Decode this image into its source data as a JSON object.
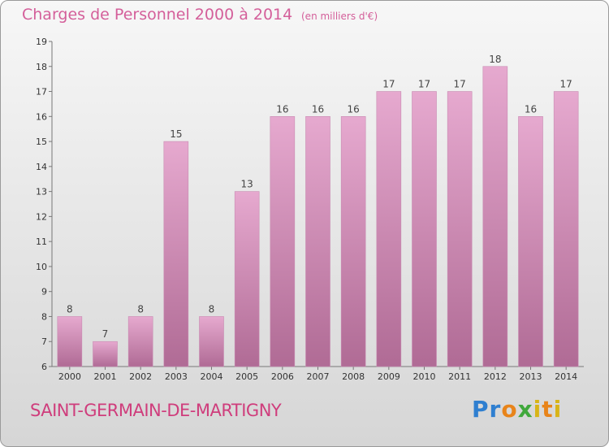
{
  "header": {
    "title": "Charges de Personnel 2000 à 2014",
    "subtitle": "(en milliers d'€)"
  },
  "footer": {
    "commune": "SAINT-GERMAIN-DE-MARTIGNY",
    "logo": "Proxiti"
  },
  "colors": {
    "bar_top": "#e6a9cf",
    "bar_bottom": "#b06b95",
    "title": "#d45f9a"
  },
  "chart_data": {
    "type": "bar",
    "title": "Charges de Personnel 2000 à 2014",
    "subtitle": "(en milliers d'€)",
    "categories": [
      "2000",
      "2001",
      "2002",
      "2003",
      "2004",
      "2005",
      "2006",
      "2007",
      "2008",
      "2009",
      "2010",
      "2011",
      "2012",
      "2013",
      "2014"
    ],
    "values": [
      8,
      7,
      8,
      15,
      8,
      13,
      16,
      16,
      16,
      17,
      17,
      17,
      18,
      16,
      17
    ],
    "xlabel": "",
    "ylabel": "",
    "ylim": [
      6,
      19
    ],
    "yticks": [
      6,
      7,
      8,
      9,
      10,
      11,
      12,
      13,
      14,
      15,
      16,
      17,
      18,
      19
    ],
    "grid": false,
    "legend": "none"
  }
}
